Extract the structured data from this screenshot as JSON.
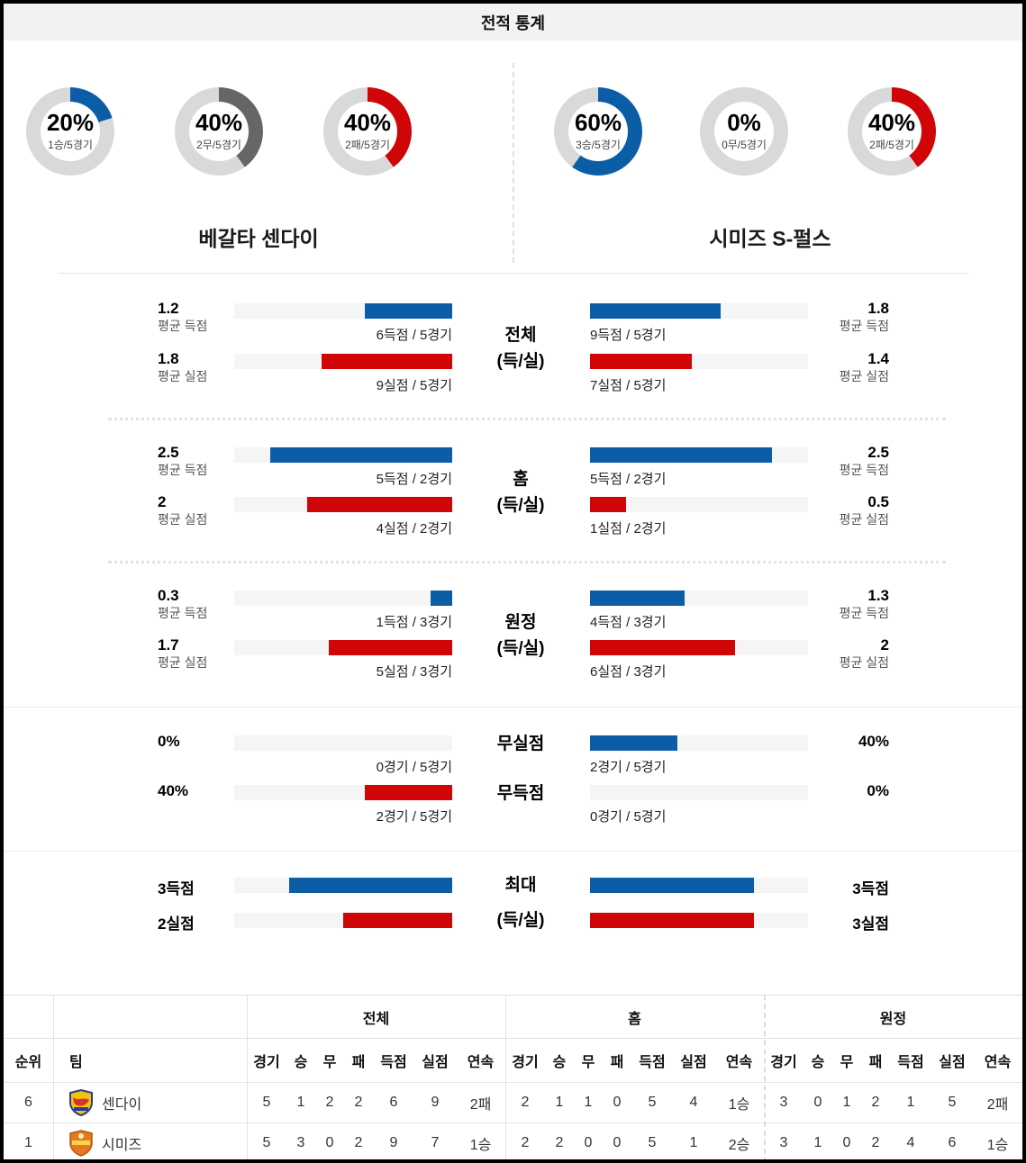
{
  "title": "전적 통계",
  "teams": {
    "home": "베갈타 센다이",
    "away": "시미즈 S-펄스"
  },
  "colors": {
    "win_blue": "#0b5ea6",
    "draw_gray": "#666666",
    "loss_red": "#cf0507",
    "donut_track": "#d9d9d9"
  },
  "donuts": {
    "home": [
      {
        "percent": 20,
        "percent_text": "20%",
        "sub": "1승/5경기",
        "color": "#0b5ea6"
      },
      {
        "percent": 40,
        "percent_text": "40%",
        "sub": "2무/5경기",
        "color": "#666666"
      },
      {
        "percent": 40,
        "percent_text": "40%",
        "sub": "2패/5경기",
        "color": "#cf0507"
      }
    ],
    "away": [
      {
        "percent": 60,
        "percent_text": "60%",
        "sub": "3승/5경기",
        "color": "#0b5ea6"
      },
      {
        "percent": 0,
        "percent_text": "0%",
        "sub": "0무/5경기",
        "color": "#666666"
      },
      {
        "percent": 40,
        "percent_text": "40%",
        "sub": "2패/5경기",
        "color": "#cf0507"
      }
    ]
  },
  "sections": {
    "total": {
      "center1": "전체",
      "center2": "(득/실)",
      "scored": {
        "color": "#0b5ea6",
        "left": {
          "value": "1.2",
          "label": "평균 득점",
          "sub": "6득점 / 5경기",
          "pct": 40
        },
        "right": {
          "value": "1.8",
          "label": "평균 득점",
          "sub": "9득점 / 5경기",
          "pct": 60
        }
      },
      "conceded": {
        "color": "#cf0507",
        "left": {
          "value": "1.8",
          "label": "평균 실점",
          "sub": "9실점 / 5경기",
          "pct": 60
        },
        "right": {
          "value": "1.4",
          "label": "평균 실점",
          "sub": "7실점 / 5경기",
          "pct": 46.7
        }
      }
    },
    "home": {
      "center1": "홈",
      "center2": "(득/실)",
      "scored": {
        "color": "#0b5ea6",
        "left": {
          "value": "2.5",
          "label": "평균 득점",
          "sub": "5득점 / 2경기",
          "pct": 83.3
        },
        "right": {
          "value": "2.5",
          "label": "평균 득점",
          "sub": "5득점 / 2경기",
          "pct": 83.3
        }
      },
      "conceded": {
        "color": "#cf0507",
        "left": {
          "value": "2",
          "label": "평균 실점",
          "sub": "4실점 / 2경기",
          "pct": 66.7
        },
        "right": {
          "value": "0.5",
          "label": "평균 실점",
          "sub": "1실점 / 2경기",
          "pct": 16.7
        }
      }
    },
    "away": {
      "center1": "원정",
      "center2": "(득/실)",
      "scored": {
        "color": "#0b5ea6",
        "left": {
          "value": "0.3",
          "label": "평균 득점",
          "sub": "1득점 / 3경기",
          "pct": 10
        },
        "right": {
          "value": "1.3",
          "label": "평균 득점",
          "sub": "4득점 / 3경기",
          "pct": 43.3
        }
      },
      "conceded": {
        "color": "#cf0507",
        "left": {
          "value": "1.7",
          "label": "평균 실점",
          "sub": "5실점 / 3경기",
          "pct": 56.7
        },
        "right": {
          "value": "2",
          "label": "평균 실점",
          "sub": "6실점 / 3경기",
          "pct": 66.7
        }
      }
    },
    "clean": {
      "center_top": "무실점",
      "center_bottom": "무득점",
      "no_concede": {
        "color": "#0b5ea6",
        "left": {
          "value": "0%",
          "sub": "0경기 / 5경기",
          "pct": 0
        },
        "right": {
          "value": "40%",
          "sub": "2경기 / 5경기",
          "pct": 40
        }
      },
      "no_score": {
        "color": "#cf0507",
        "left": {
          "value": "40%",
          "sub": "2경기 / 5경기",
          "pct": 40
        },
        "right": {
          "value": "0%",
          "sub": "0경기 / 5경기",
          "pct": 0
        }
      }
    },
    "max": {
      "center1": "최대",
      "center2": "(득/실)",
      "scored": {
        "color": "#0b5ea6",
        "left": {
          "label": "3득점",
          "pct": 75
        },
        "right": {
          "label": "3득점",
          "pct": 75
        }
      },
      "conceded": {
        "color": "#cf0507",
        "left": {
          "label": "2실점",
          "pct": 50
        },
        "right": {
          "label": "3실점",
          "pct": 75
        }
      }
    }
  },
  "table": {
    "group_headers": [
      "전체",
      "홈",
      "원정"
    ],
    "rank_header": "순위",
    "team_header": "팀",
    "stat_headers": [
      "경기",
      "승",
      "무",
      "패",
      "득점",
      "실점",
      "연속"
    ],
    "rows": [
      {
        "rank": "6",
        "team": "센다이",
        "total": [
          "5",
          "1",
          "2",
          "2",
          "6",
          "9",
          "2패"
        ],
        "home": [
          "2",
          "1",
          "1",
          "0",
          "5",
          "4",
          "1승"
        ],
        "away": [
          "3",
          "0",
          "1",
          "2",
          "1",
          "5",
          "2패"
        ]
      },
      {
        "rank": "1",
        "team": "시미즈",
        "total": [
          "5",
          "3",
          "0",
          "2",
          "9",
          "7",
          "1승"
        ],
        "home": [
          "2",
          "2",
          "0",
          "0",
          "5",
          "1",
          "2승"
        ],
        "away": [
          "3",
          "1",
          "0",
          "2",
          "4",
          "6",
          "1승"
        ]
      }
    ]
  },
  "chart_data": [
    {
      "type": "pie",
      "team": "베갈타 센다이",
      "metric": "승",
      "percent": 20,
      "label": "1승/5경기"
    },
    {
      "type": "pie",
      "team": "베갈타 센다이",
      "metric": "무",
      "percent": 40,
      "label": "2무/5경기"
    },
    {
      "type": "pie",
      "team": "베갈타 센다이",
      "metric": "패",
      "percent": 40,
      "label": "2패/5경기"
    },
    {
      "type": "pie",
      "team": "시미즈 S-펄스",
      "metric": "승",
      "percent": 60,
      "label": "3승/5경기"
    },
    {
      "type": "pie",
      "team": "시미즈 S-펄스",
      "metric": "무",
      "percent": 0,
      "label": "0무/5경기"
    },
    {
      "type": "pie",
      "team": "시미즈 S-펄스",
      "metric": "패",
      "percent": 40,
      "label": "2패/5경기"
    },
    {
      "type": "bar",
      "title": "전체 (득/실)",
      "max": 3,
      "categories": [
        "평균 득점",
        "평균 실점"
      ],
      "series": [
        {
          "name": "베갈타 센다이",
          "values": [
            1.2,
            1.8
          ]
        },
        {
          "name": "시미즈 S-펄스",
          "values": [
            1.8,
            1.4
          ]
        }
      ]
    },
    {
      "type": "bar",
      "title": "홈 (득/실)",
      "max": 3,
      "categories": [
        "평균 득점",
        "평균 실점"
      ],
      "series": [
        {
          "name": "베갈타 센다이",
          "values": [
            2.5,
            2
          ]
        },
        {
          "name": "시미즈 S-펄스",
          "values": [
            2.5,
            0.5
          ]
        }
      ]
    },
    {
      "type": "bar",
      "title": "원정 (득/실)",
      "max": 3,
      "categories": [
        "평균 득점",
        "평균 실점"
      ],
      "series": [
        {
          "name": "베갈타 센다이",
          "values": [
            0.3,
            1.7
          ]
        },
        {
          "name": "시미즈 S-펄스",
          "values": [
            1.3,
            2
          ]
        }
      ]
    },
    {
      "type": "bar",
      "title": "무실점 / 무득점 (%)",
      "max": 100,
      "categories": [
        "무실점",
        "무득점"
      ],
      "series": [
        {
          "name": "베갈타 센다이",
          "values": [
            0,
            40
          ]
        },
        {
          "name": "시미즈 S-펄스",
          "values": [
            40,
            0
          ]
        }
      ]
    },
    {
      "type": "bar",
      "title": "최대 (득/실)",
      "max": 4,
      "categories": [
        "최대 득점",
        "최대 실점"
      ],
      "series": [
        {
          "name": "베갈타 센다이",
          "values": [
            3,
            2
          ]
        },
        {
          "name": "시미즈 S-펄스",
          "values": [
            3,
            3
          ]
        }
      ]
    },
    {
      "type": "table",
      "columns": [
        "순위",
        "팀",
        "전체:경기,승,무,패,득점,실점,연속",
        "홈:경기,승,무,패,득점,실점,연속",
        "원정:경기,승,무,패,득점,실점,연속"
      ],
      "rows": [
        [
          "6",
          "센다이",
          "5,1,2,2,6,9,2패",
          "2,1,1,0,5,4,1승",
          "3,0,1,2,1,5,2패"
        ],
        [
          "1",
          "시미즈",
          "5,3,0,2,9,7,1승",
          "2,2,0,0,5,1,2승",
          "3,1,0,2,4,6,1승"
        ]
      ]
    }
  ]
}
